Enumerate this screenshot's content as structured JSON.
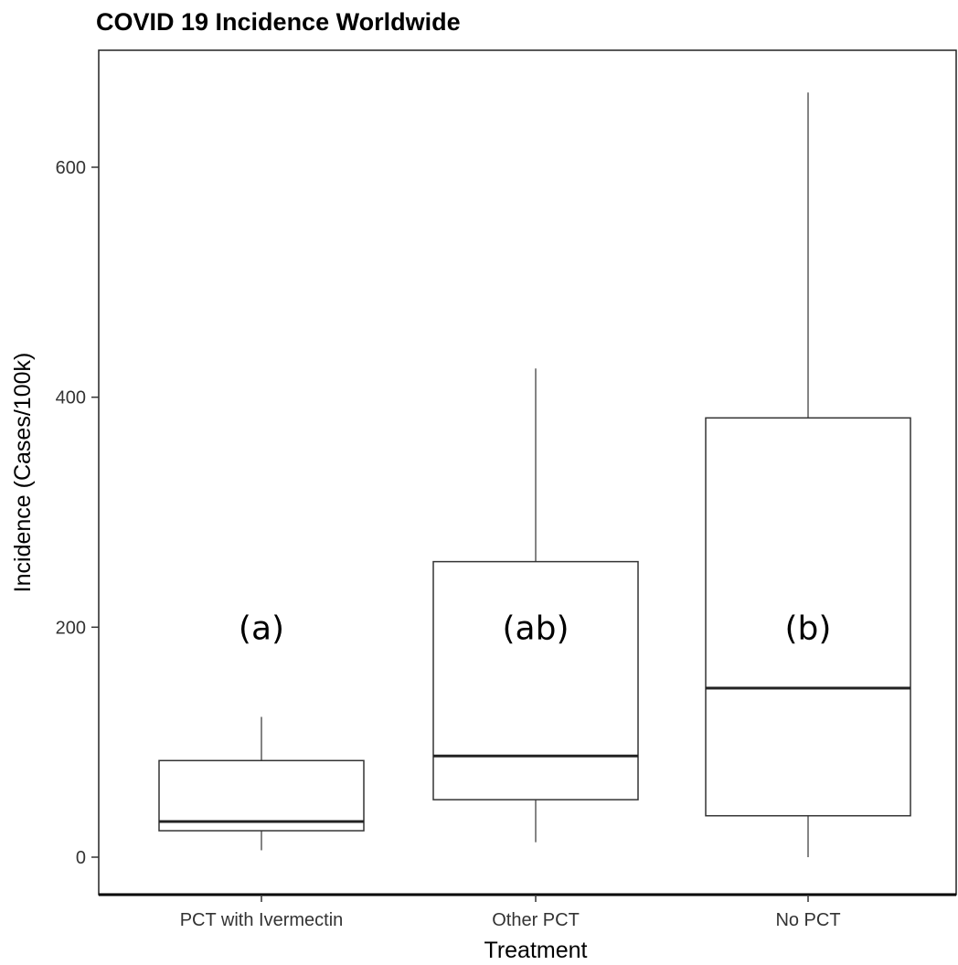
{
  "chart_data": {
    "type": "boxplot",
    "title": "COVID 19 Incidence Worldwide",
    "xlabel": "Treatment",
    "ylabel": "Incidence (Cases/100k)",
    "ylim": [
      -40,
      690
    ],
    "yticks": [
      0,
      200,
      400,
      600
    ],
    "grid": false,
    "categories": [
      "PCT with Ivermectin",
      "Other PCT",
      "No PCT"
    ],
    "boxes": [
      {
        "category": "PCT with Ivermectin",
        "min": 6,
        "q1": 23,
        "median": 31,
        "q3": 84,
        "max": 122,
        "group_label": "(a)"
      },
      {
        "category": "Other PCT",
        "min": 13,
        "q1": 50,
        "median": 88,
        "q3": 257,
        "max": 425,
        "group_label": "(ab)"
      },
      {
        "category": "No PCT",
        "min": 0,
        "q1": 36,
        "median": 147,
        "q3": 382,
        "max": 665,
        "group_label": "(b)"
      }
    ]
  }
}
